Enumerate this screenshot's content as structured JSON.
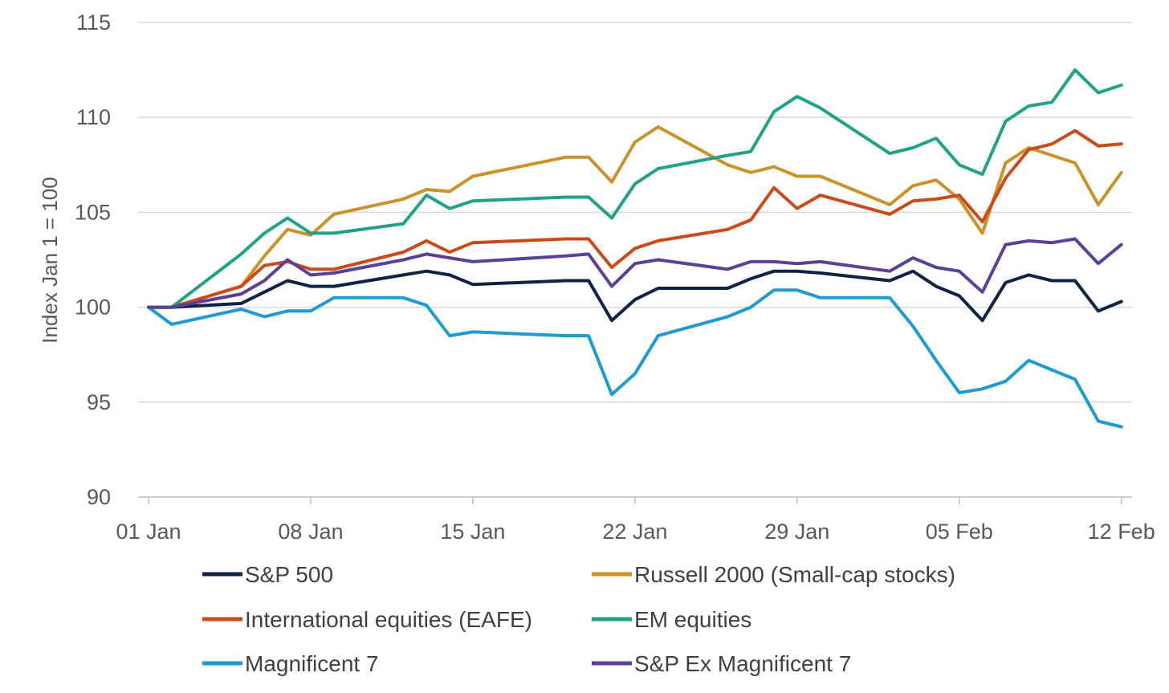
{
  "chart_data": {
    "type": "line",
    "title": "",
    "xlabel": "",
    "ylabel": "Index  Jan 1 = 100",
    "ylim": [
      90,
      115
    ],
    "yticks": [
      90,
      95,
      100,
      105,
      110,
      115
    ],
    "x_domain": [
      0,
      42
    ],
    "xticks": [
      {
        "day": 0,
        "label": "01 Jan"
      },
      {
        "day": 7,
        "label": "08 Jan"
      },
      {
        "day": 14,
        "label": "15 Jan"
      },
      {
        "day": 21,
        "label": "22 Jan"
      },
      {
        "day": 28,
        "label": "29 Jan"
      },
      {
        "day": 35,
        "label": "05 Feb"
      },
      {
        "day": 42,
        "label": "12 Feb"
      }
    ],
    "x": [
      0,
      1,
      4,
      5,
      6,
      7,
      8,
      11,
      12,
      13,
      14,
      18,
      19,
      20,
      21,
      22,
      25,
      26,
      27,
      28,
      29,
      32,
      33,
      34,
      35,
      36,
      37,
      38,
      39,
      40,
      41,
      42
    ],
    "series": [
      {
        "name": "S&P 500",
        "color": "#0e2345",
        "values": [
          100,
          100,
          100.2,
          100.8,
          101.4,
          101.1,
          101.1,
          101.7,
          101.9,
          101.7,
          101.2,
          101.4,
          101.4,
          99.3,
          100.4,
          101.0,
          101.0,
          101.5,
          101.9,
          101.9,
          101.8,
          101.4,
          101.9,
          101.1,
          100.6,
          99.3,
          101.3,
          101.7,
          101.4,
          101.4,
          99.8,
          100.3
        ]
      },
      {
        "name": "Russell 2000 (Small-cap stocks)",
        "color": "#c9932a",
        "values": [
          100,
          100,
          101.1,
          102.7,
          104.1,
          103.8,
          104.9,
          105.7,
          106.2,
          106.1,
          106.9,
          107.9,
          107.9,
          106.6,
          108.7,
          109.5,
          107.5,
          107.1,
          107.4,
          106.9,
          106.9,
          105.4,
          106.4,
          106.7,
          105.7,
          103.9,
          107.6,
          108.4,
          108.0,
          107.6,
          105.4,
          107.1
        ]
      },
      {
        "name": "International equities (EAFE)",
        "color": "#cc4a17",
        "values": [
          100,
          100,
          101.1,
          102.2,
          102.4,
          102.0,
          102.0,
          102.9,
          103.5,
          102.9,
          103.4,
          103.6,
          103.6,
          102.1,
          103.1,
          103.5,
          104.1,
          104.6,
          106.3,
          105.2,
          105.9,
          104.9,
          105.6,
          105.7,
          105.9,
          104.5,
          106.8,
          108.3,
          108.6,
          109.3,
          108.5,
          108.6
        ]
      },
      {
        "name": "EM equities",
        "color": "#1fa386",
        "values": [
          100,
          100,
          102.8,
          103.9,
          104.7,
          103.9,
          103.9,
          104.4,
          105.9,
          105.2,
          105.6,
          105.8,
          105.8,
          104.7,
          106.5,
          107.3,
          108.0,
          108.2,
          110.3,
          111.1,
          110.5,
          108.1,
          108.4,
          108.9,
          107.5,
          107.0,
          109.8,
          110.6,
          110.8,
          112.5,
          111.3,
          111.7
        ]
      },
      {
        "name": "Magnificent 7",
        "color": "#1d9bd3",
        "values": [
          100,
          99.1,
          99.9,
          99.5,
          99.8,
          99.8,
          100.5,
          100.5,
          100.1,
          98.5,
          98.7,
          98.5,
          98.5,
          95.4,
          96.5,
          98.5,
          99.5,
          100.0,
          100.9,
          100.9,
          100.5,
          100.5,
          99.0,
          97.2,
          95.5,
          95.7,
          96.1,
          97.2,
          96.7,
          96.2,
          94.0,
          93.7
        ]
      },
      {
        "name": "S&P Ex Magnificent 7",
        "color": "#5a4099",
        "values": [
          100,
          100,
          100.7,
          101.4,
          102.5,
          101.7,
          101.8,
          102.5,
          102.8,
          102.6,
          102.4,
          102.7,
          102.8,
          101.1,
          102.3,
          102.5,
          102.0,
          102.4,
          102.4,
          102.3,
          102.4,
          101.9,
          102.6,
          102.1,
          101.9,
          100.8,
          103.3,
          103.5,
          103.4,
          103.6,
          102.3,
          103.3
        ]
      }
    ],
    "legend_position": "bottom"
  }
}
